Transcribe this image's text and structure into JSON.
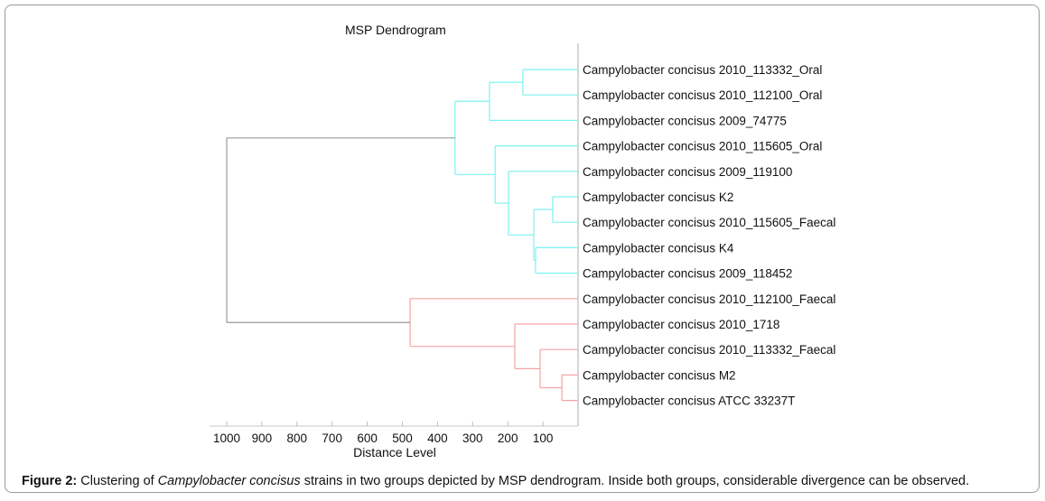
{
  "chart_data": {
    "type": "dendrogram",
    "title": "MSP Dendrogram",
    "xlabel": "Distance Level",
    "xlim": [
      1000,
      0
    ],
    "xticks": [
      1000,
      900,
      800,
      700,
      600,
      500,
      400,
      300,
      200,
      100
    ],
    "leaves": [
      "Campylobacter concisus 2010_113332_Oral",
      "Campylobacter concisus 2010_112100_Oral",
      "Campylobacter concisus 2009_74775",
      "Campylobacter concisus 2010_115605_Oral",
      "Campylobacter concisus 2009_119100",
      "Campylobacter concisus K2",
      "Campylobacter concisus 2010_115605_Faecal",
      "Campylobacter concisus K4",
      "Campylobacter concisus 2009_118452",
      "Campylobacter concisus 2010_112100_Faecal",
      "Campylobacter concisus 2010_1718",
      "Campylobacter concisus 2010_113332_Faecal",
      "Campylobacter concisus M2",
      "Campylobacter concisus ATCC 33237T"
    ],
    "merges": [
      {
        "id": "n1",
        "children": [
          "L0",
          "L1"
        ],
        "distance": 157,
        "group": "cyan"
      },
      {
        "id": "n2",
        "children": [
          "n1",
          "L2"
        ],
        "distance": 252,
        "group": "cyan"
      },
      {
        "id": "n3",
        "children": [
          "L5",
          "L6"
        ],
        "distance": 72,
        "group": "cyan"
      },
      {
        "id": "n4",
        "children": [
          "L7",
          "L8"
        ],
        "distance": 121,
        "group": "cyan"
      },
      {
        "id": "n5",
        "children": [
          "n3",
          "n4"
        ],
        "distance": 126,
        "group": "cyan"
      },
      {
        "id": "n6",
        "children": [
          "L4",
          "n5"
        ],
        "distance": 198,
        "group": "cyan"
      },
      {
        "id": "n7",
        "children": [
          "L3",
          "n6"
        ],
        "distance": 236,
        "group": "cyan"
      },
      {
        "id": "n8",
        "children": [
          "n2",
          "n7"
        ],
        "distance": 350,
        "group": "cyan"
      },
      {
        "id": "n9",
        "children": [
          "L12",
          "L13"
        ],
        "distance": 46,
        "group": "red"
      },
      {
        "id": "n10",
        "children": [
          "L11",
          "n9"
        ],
        "distance": 108,
        "group": "red"
      },
      {
        "id": "n11",
        "children": [
          "L10",
          "n10"
        ],
        "distance": 180,
        "group": "red"
      },
      {
        "id": "n12",
        "children": [
          "L9",
          "n11"
        ],
        "distance": 478,
        "group": "red"
      },
      {
        "id": "root",
        "children": [
          "n8",
          "n12"
        ],
        "distance": 1000,
        "group": "root"
      }
    ],
    "colors": {
      "cyan": "#7ef2f2",
      "red": "#f5a3a3",
      "root": "#9a9a9a",
      "axis": "#c8c8c8"
    }
  },
  "caption": {
    "label": "Figure 2:",
    "text_before": " Clustering of ",
    "italic": "Campylobacter concisus",
    "text_after": " strains in two groups depicted by MSP dendrogram. Inside both groups, considerable divergence can be observed."
  }
}
